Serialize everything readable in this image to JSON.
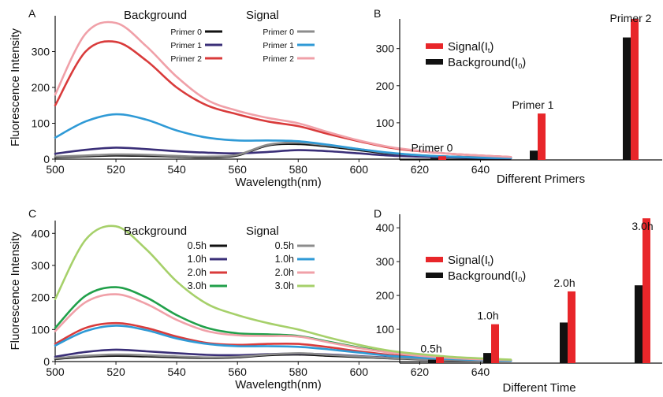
{
  "chart_data": [
    {
      "panel": "A",
      "type": "line",
      "xlabel": "Wavelength(nm)",
      "ylabel": "Fluorescence Intensity",
      "xlim": [
        500,
        650
      ],
      "ylim": [
        0,
        400
      ],
      "xticks": [
        500,
        520,
        540,
        560,
        580,
        600,
        620,
        640
      ],
      "yticks": [
        0,
        100,
        200,
        300
      ],
      "legend": {
        "placement": "top-right",
        "group_titles": [
          "Background",
          "Signal"
        ],
        "background_labels": [
          "Primer 0",
          "Primer 1",
          "Primer 2"
        ],
        "signal_labels": [
          "Primer 0",
          "Primer 1",
          "Primer 2"
        ]
      },
      "series": [
        {
          "group": "Background",
          "name": "Primer 0",
          "color": "#111111",
          "x": [
            500,
            510,
            520,
            530,
            540,
            550,
            560,
            570,
            580,
            590,
            600,
            610,
            620,
            630,
            640,
            650
          ],
          "y": [
            5,
            8,
            10,
            9,
            7,
            5,
            10,
            38,
            42,
            35,
            25,
            15,
            10,
            7,
            5,
            3
          ]
        },
        {
          "group": "Background",
          "name": "Primer 1",
          "color": "#3a2f78",
          "x": [
            500,
            510,
            520,
            530,
            540,
            550,
            560,
            570,
            580,
            590,
            600,
            610,
            620,
            630,
            640,
            650
          ],
          "y": [
            15,
            26,
            32,
            28,
            22,
            18,
            16,
            20,
            25,
            22,
            16,
            10,
            7,
            5,
            3,
            2
          ]
        },
        {
          "group": "Background",
          "name": "Primer 2",
          "color": "#d93b3b",
          "x": [
            500,
            510,
            520,
            530,
            540,
            550,
            560,
            570,
            580,
            590,
            600,
            610,
            620,
            630,
            640,
            650
          ],
          "y": [
            150,
            300,
            327,
            275,
            200,
            150,
            125,
            105,
            92,
            70,
            50,
            32,
            22,
            15,
            10,
            6
          ]
        },
        {
          "group": "Signal",
          "name": "Primer 0",
          "color": "#8c8c8c",
          "x": [
            500,
            510,
            520,
            530,
            540,
            550,
            560,
            570,
            580,
            590,
            600,
            610,
            620,
            630,
            640,
            650
          ],
          "y": [
            7,
            10,
            13,
            12,
            9,
            7,
            12,
            40,
            46,
            38,
            28,
            17,
            11,
            7,
            5,
            3
          ]
        },
        {
          "group": "Signal",
          "name": "Primer 1",
          "color": "#2f9ad6",
          "x": [
            500,
            510,
            520,
            530,
            540,
            550,
            560,
            570,
            580,
            590,
            600,
            610,
            620,
            630,
            640,
            650
          ],
          "y": [
            60,
            105,
            125,
            110,
            80,
            60,
            52,
            52,
            50,
            40,
            28,
            18,
            11,
            7,
            4,
            3
          ]
        },
        {
          "group": "Signal",
          "name": "Primer 2",
          "color": "#f0a0a8",
          "x": [
            500,
            510,
            520,
            530,
            540,
            550,
            560,
            570,
            580,
            590,
            600,
            610,
            620,
            630,
            640,
            650
          ],
          "y": [
            180,
            350,
            380,
            315,
            230,
            165,
            135,
            115,
            100,
            75,
            52,
            34,
            23,
            15,
            10,
            6
          ]
        }
      ]
    },
    {
      "panel": "B",
      "type": "bar",
      "xlabel": "Different Primers",
      "ylabel": "",
      "ylim": [
        0,
        380
      ],
      "yticks": [
        100,
        200,
        300
      ],
      "categories": [
        "Primer 0",
        "Primer 1",
        "Primer 2"
      ],
      "legend": {
        "placement": "top-left",
        "signal_label": "Signal(I",
        "signal_sub": "t",
        "background_label": "Background(I",
        "background_sub": "0",
        "close": ")"
      },
      "series": [
        {
          "name": "Background",
          "color": "#111111",
          "values": [
            5,
            25,
            330
          ]
        },
        {
          "name": "Signal",
          "color": "#e8262a",
          "values": [
            10,
            125,
            380
          ]
        }
      ]
    },
    {
      "panel": "C",
      "type": "line",
      "xlabel": "Wavelength(nm)",
      "ylabel": "Fluorescence Intensity",
      "xlim": [
        500,
        650
      ],
      "ylim": [
        0,
        440
      ],
      "xticks": [
        500,
        520,
        540,
        560,
        580,
        600,
        620,
        640
      ],
      "yticks": [
        0,
        100,
        200,
        300,
        400
      ],
      "legend": {
        "placement": "top-right",
        "group_titles": [
          "Background",
          "Signal"
        ],
        "background_labels": [
          "0.5h",
          "1.0h",
          "2.0h",
          "3.0h"
        ],
        "signal_labels": [
          "0.5h",
          "1.0h",
          "2.0h",
          "3.0h"
        ]
      },
      "series": [
        {
          "group": "Background",
          "name": "0.5h",
          "color": "#111111",
          "x": [
            500,
            510,
            520,
            530,
            540,
            550,
            560,
            570,
            580,
            590,
            600,
            610,
            620,
            630,
            640,
            650
          ],
          "y": [
            8,
            15,
            18,
            16,
            13,
            11,
            13,
            20,
            22,
            18,
            14,
            10,
            7,
            5,
            3,
            2
          ]
        },
        {
          "group": "Background",
          "name": "1.0h",
          "color": "#3a2f78",
          "x": [
            500,
            510,
            520,
            530,
            540,
            550,
            560,
            570,
            580,
            590,
            600,
            610,
            620,
            630,
            640,
            650
          ],
          "y": [
            15,
            30,
            37,
            32,
            26,
            21,
            20,
            23,
            25,
            22,
            17,
            12,
            8,
            5,
            3,
            2
          ]
        },
        {
          "group": "Background",
          "name": "2.0h",
          "color": "#d93b3b",
          "x": [
            500,
            510,
            520,
            530,
            540,
            550,
            560,
            570,
            580,
            590,
            600,
            610,
            620,
            630,
            640,
            650
          ],
          "y": [
            55,
            105,
            120,
            105,
            78,
            58,
            52,
            55,
            55,
            45,
            32,
            21,
            14,
            9,
            6,
            4
          ]
        },
        {
          "group": "Background",
          "name": "3.0h",
          "color": "#21a04a",
          "x": [
            500,
            510,
            520,
            530,
            540,
            550,
            560,
            570,
            580,
            590,
            600,
            610,
            620,
            630,
            640,
            650
          ],
          "y": [
            105,
            205,
            232,
            200,
            145,
            105,
            88,
            85,
            80,
            62,
            44,
            29,
            19,
            12,
            8,
            5
          ]
        },
        {
          "group": "Signal",
          "name": "0.5h",
          "color": "#8c8c8c",
          "x": [
            500,
            510,
            520,
            530,
            540,
            550,
            560,
            570,
            580,
            590,
            600,
            610,
            620,
            630,
            640,
            650
          ],
          "y": [
            10,
            18,
            22,
            20,
            16,
            13,
            15,
            22,
            26,
            21,
            16,
            11,
            8,
            5,
            3,
            2
          ]
        },
        {
          "group": "Signal",
          "name": "1.0h",
          "color": "#2f9ad6",
          "x": [
            500,
            510,
            520,
            530,
            540,
            550,
            560,
            570,
            580,
            590,
            600,
            610,
            620,
            630,
            640,
            650
          ],
          "y": [
            50,
            95,
            112,
            98,
            72,
            55,
            48,
            48,
            46,
            38,
            28,
            18,
            12,
            8,
            5,
            3
          ]
        },
        {
          "group": "Signal",
          "name": "2.0h",
          "color": "#f0a0a8",
          "x": [
            500,
            510,
            520,
            530,
            540,
            550,
            560,
            570,
            580,
            590,
            600,
            610,
            620,
            630,
            640,
            650
          ],
          "y": [
            95,
            185,
            210,
            180,
            130,
            95,
            82,
            80,
            78,
            60,
            42,
            28,
            18,
            11,
            7,
            5
          ]
        },
        {
          "group": "Signal",
          "name": "3.0h",
          "color": "#a6d06a",
          "x": [
            500,
            510,
            520,
            530,
            540,
            550,
            560,
            570,
            580,
            590,
            600,
            610,
            620,
            630,
            640,
            650
          ],
          "y": [
            195,
            380,
            422,
            350,
            250,
            180,
            145,
            120,
            100,
            75,
            52,
            34,
            23,
            15,
            10,
            6
          ]
        }
      ]
    },
    {
      "panel": "D",
      "type": "bar",
      "xlabel": "Different Time",
      "ylabel": "",
      "ylim": [
        0,
        440
      ],
      "yticks": [
        100,
        200,
        300,
        400
      ],
      "categories": [
        "0.5h",
        "1.0h",
        "2.0h",
        "3.0h"
      ],
      "legend": {
        "placement": "top-left",
        "signal_label": "Signal(I",
        "signal_sub": "t",
        "background_label": "Background(I",
        "background_sub": "0",
        "close": ")"
      },
      "series": [
        {
          "name": "Background",
          "color": "#111111",
          "values": [
            10,
            30,
            120,
            230
          ]
        },
        {
          "name": "Signal",
          "color": "#e8262a",
          "values": [
            18,
            115,
            212,
            428
          ]
        }
      ]
    }
  ]
}
